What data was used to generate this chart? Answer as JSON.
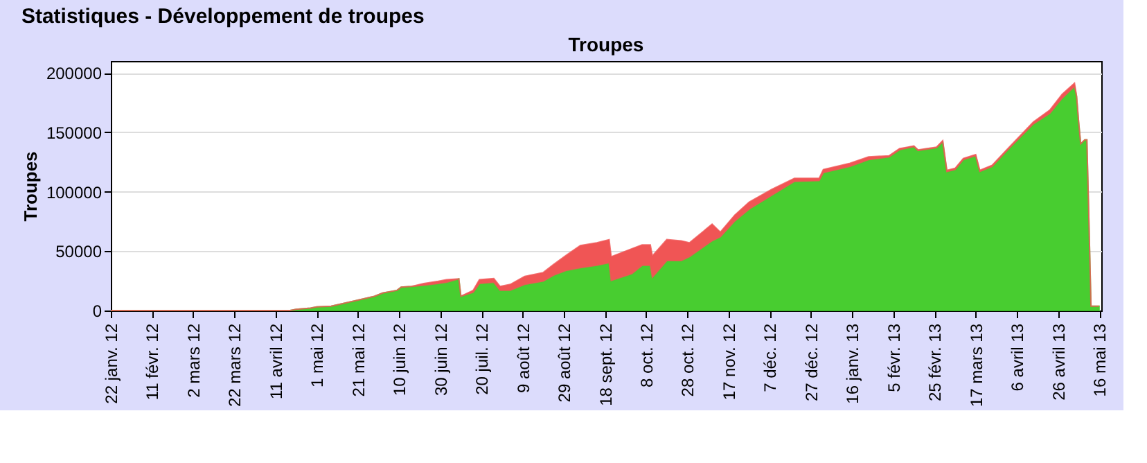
{
  "chart_data": {
    "type": "area",
    "title": "Statistiques - Développement de troupes",
    "subtitle": "Troupes",
    "ylabel": "Troupes",
    "stacked": true,
    "legend": false,
    "grid": "y",
    "x": [
      "2012-01-22",
      "2012-04-18",
      "2012-04-21",
      "2012-04-28",
      "2012-05-01",
      "2012-05-08",
      "2012-05-14",
      "2012-05-21",
      "2012-05-29",
      "2012-06-02",
      "2012-06-09",
      "2012-06-11",
      "2012-06-16",
      "2012-06-22",
      "2012-06-29",
      "2012-07-03",
      "2012-07-09",
      "2012-07-10",
      "2012-07-16",
      "2012-07-19",
      "2012-07-26",
      "2012-07-29",
      "2012-08-03",
      "2012-08-10",
      "2012-08-19",
      "2012-08-24",
      "2012-08-30",
      "2012-09-06",
      "2012-09-14",
      "2012-09-20",
      "2012-09-21",
      "2012-10-01",
      "2012-10-06",
      "2012-10-10",
      "2012-10-11",
      "2012-10-18",
      "2012-10-25",
      "2012-10-29",
      "2012-11-09",
      "2012-11-13",
      "2012-11-20",
      "2012-11-27",
      "2012-12-08",
      "2012-12-19",
      "2012-12-31",
      "2013-01-02",
      "2013-01-15",
      "2013-01-24",
      "2013-02-03",
      "2013-02-08",
      "2013-02-15",
      "2013-02-17",
      "2013-02-26",
      "2013-03-01",
      "2013-03-03",
      "2013-03-07",
      "2013-03-11",
      "2013-03-17",
      "2013-03-19",
      "2013-03-25",
      "2013-04-02",
      "2013-04-14",
      "2013-04-22",
      "2013-04-28",
      "2013-05-04",
      "2013-05-05",
      "2013-05-06",
      "2013-05-07",
      "2013-05-09",
      "2013-05-10",
      "2013-05-11",
      "2013-05-12",
      "2013-05-16"
    ],
    "series": [
      {
        "color": "#48cd30",
        "values": [
          0,
          0,
          1000,
          2000,
          3000,
          3700,
          6000,
          8700,
          12000,
          14700,
          17000,
          19700,
          20300,
          21300,
          22700,
          23700,
          26700,
          12000,
          15300,
          22700,
          23700,
          17000,
          17000,
          22000,
          24700,
          29700,
          33700,
          36000,
          38000,
          40300,
          25300,
          31000,
          38000,
          38000,
          28000,
          42000,
          42000,
          45300,
          58700,
          62000,
          75300,
          85300,
          97000,
          108700,
          109300,
          116000,
          121300,
          127000,
          129300,
          135300,
          138000,
          134700,
          137000,
          142000,
          117000,
          118700,
          127000,
          130300,
          117000,
          121300,
          136000,
          157000,
          166000,
          178700,
          188700,
          180300,
          158700,
          140300,
          143700,
          143700,
          75300,
          3700,
          3700
        ]
      },
      {
        "color": "#f05555",
        "values": [
          0,
          0,
          0,
          0,
          0,
          0,
          0,
          0,
          0,
          0,
          0,
          0,
          0,
          1400,
          2000,
          2300,
          0,
          0,
          1700,
          3300,
          3300,
          3300,
          5000,
          6700,
          7300,
          9000,
          12600,
          18700,
          19000,
          19400,
          20000,
          21000,
          17300,
          17300,
          18000,
          17700,
          16700,
          11700,
          14000,
          4000,
          5000,
          6000,
          5000,
          2600,
          2000,
          2700,
          2700,
          2300,
          1000,
          1000,
          500,
          500,
          500,
          1000,
          1000,
          1000,
          1000,
          1000,
          1000,
          1000,
          1000,
          1700,
          2700,
          3300,
          2600,
          0,
          0,
          0,
          0,
          0,
          0,
          0,
          0
        ]
      }
    ],
    "xlim": [
      "2012-01-22",
      "2013-05-17"
    ],
    "xticks": [
      {
        "value": "2012-01-22",
        "label": "22 janv. 12"
      },
      {
        "value": "2012-02-11",
        "label": "11 févr. 12"
      },
      {
        "value": "2012-03-02",
        "label": "2 mars 12"
      },
      {
        "value": "2012-03-22",
        "label": "22 mars 12"
      },
      {
        "value": "2012-04-11",
        "label": "11 avril 12"
      },
      {
        "value": "2012-05-01",
        "label": "1 mai 12"
      },
      {
        "value": "2012-05-21",
        "label": "21 mai 12"
      },
      {
        "value": "2012-06-10",
        "label": "10 juin 12"
      },
      {
        "value": "2012-06-30",
        "label": "30 juin 12"
      },
      {
        "value": "2012-07-20",
        "label": "20 juil. 12"
      },
      {
        "value": "2012-08-09",
        "label": "9 août 12"
      },
      {
        "value": "2012-08-29",
        "label": "29 août 12"
      },
      {
        "value": "2012-09-18",
        "label": "18 sept. 12"
      },
      {
        "value": "2012-10-08",
        "label": "8 oct. 12"
      },
      {
        "value": "2012-10-28",
        "label": "28 oct. 12"
      },
      {
        "value": "2012-11-17",
        "label": "17 nov. 12"
      },
      {
        "value": "2012-12-07",
        "label": "7 déc. 12"
      },
      {
        "value": "2012-12-27",
        "label": "27 déc. 12"
      },
      {
        "value": "2013-01-16",
        "label": "16 janv. 13"
      },
      {
        "value": "2013-02-05",
        "label": "5 févr. 13"
      },
      {
        "value": "2013-02-25",
        "label": "25 févr. 13"
      },
      {
        "value": "2013-03-17",
        "label": "17 mars 13"
      },
      {
        "value": "2013-04-06",
        "label": "6 avril 13"
      },
      {
        "value": "2013-04-26",
        "label": "26 avril 13"
      },
      {
        "value": "2013-05-16",
        "label": "16 mai 13"
      }
    ],
    "ylim": [
      0,
      210000
    ],
    "yticks": [
      0,
      50000,
      100000,
      150000,
      200000
    ]
  }
}
